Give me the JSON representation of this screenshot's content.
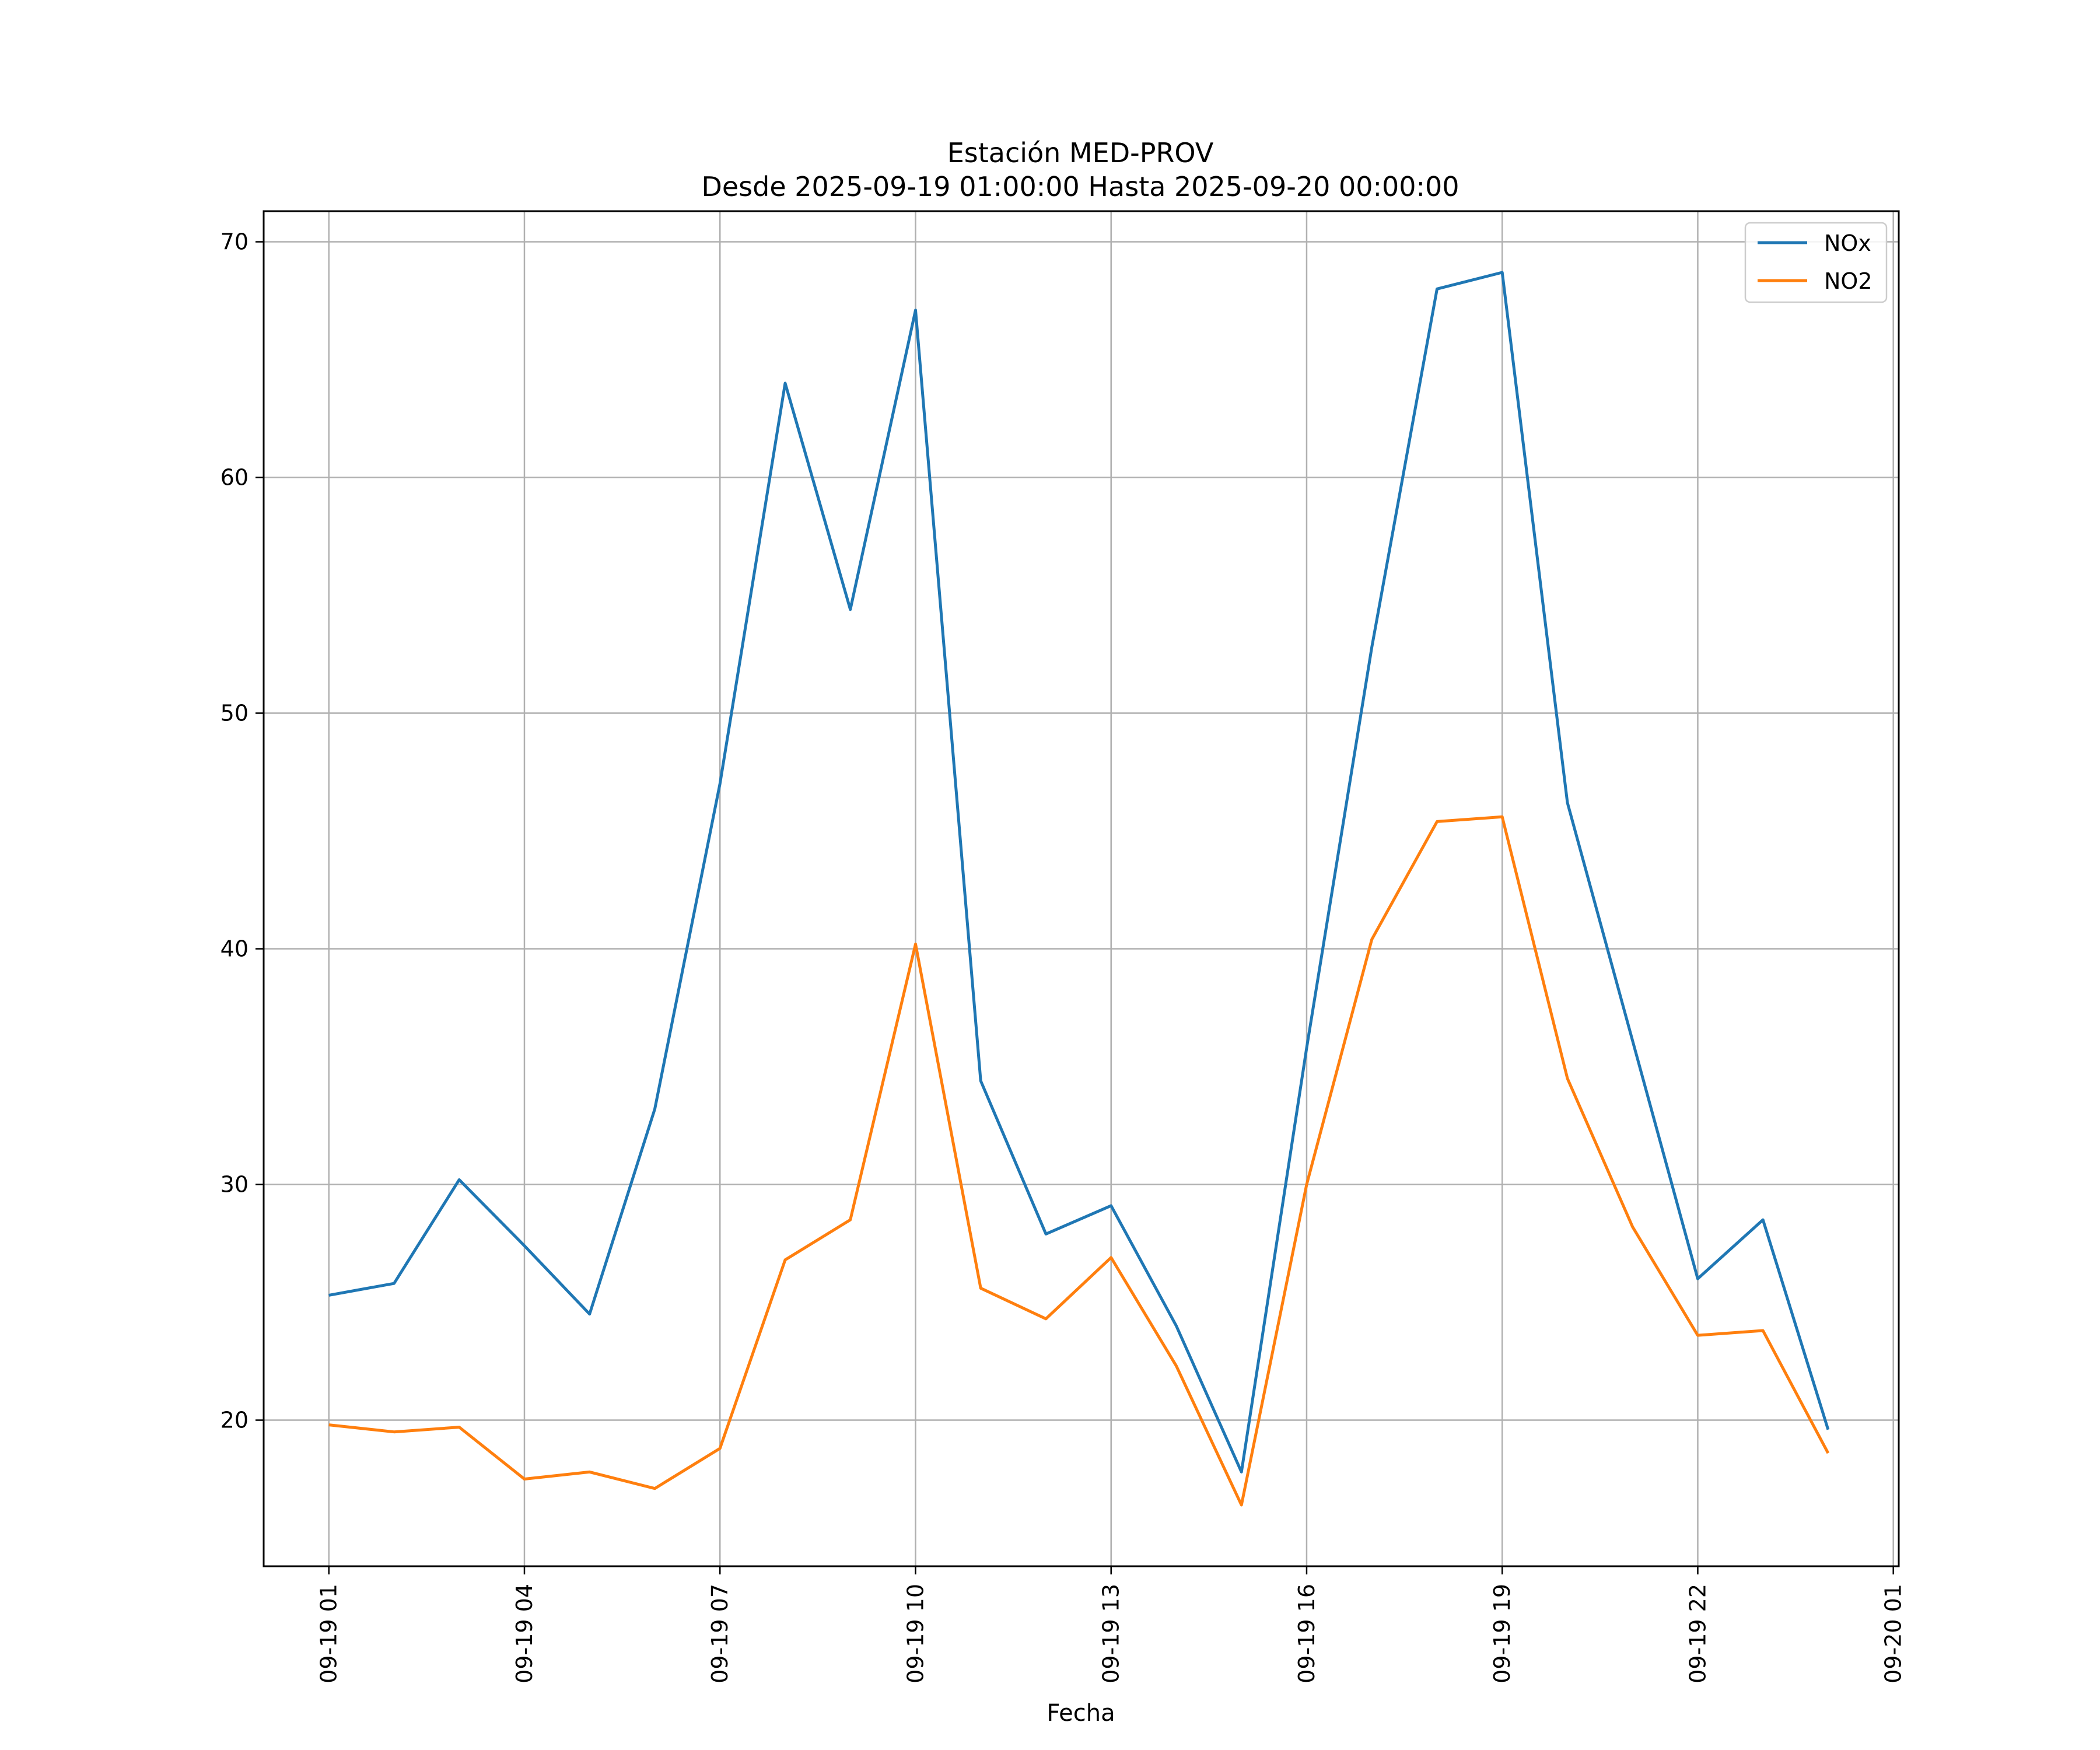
{
  "chart_data": {
    "type": "line",
    "title": "Estación MED-PROV",
    "subtitle": "Desde 2025-09-19 01:00:00 Hasta 2025-09-20 00:00:00",
    "xlabel": "Fecha",
    "ylabel": "",
    "x": [
      "2025-09-19 01:00",
      "2025-09-19 02:00",
      "2025-09-19 03:00",
      "2025-09-19 04:00",
      "2025-09-19 05:00",
      "2025-09-19 06:00",
      "2025-09-19 07:00",
      "2025-09-19 08:00",
      "2025-09-19 09:00",
      "2025-09-19 10:00",
      "2025-09-19 11:00",
      "2025-09-19 12:00",
      "2025-09-19 13:00",
      "2025-09-19 14:00",
      "2025-09-19 15:00",
      "2025-09-19 16:00",
      "2025-09-19 17:00",
      "2025-09-19 18:00",
      "2025-09-19 19:00",
      "2025-09-19 20:00",
      "2025-09-19 21:00",
      "2025-09-19 22:00",
      "2025-09-19 23:00",
      "2025-09-20 00:00"
    ],
    "xlim": [
      "2025-09-19 00:00",
      "2025-09-20 01:05"
    ],
    "xticks": [
      "09-19 01",
      "09-19 04",
      "09-19 07",
      "09-19 10",
      "09-19 13",
      "09-19 16",
      "09-19 19",
      "09-19 22",
      "09-20 01"
    ],
    "xtick_values": [
      "2025-09-19 01:00",
      "2025-09-19 04:00",
      "2025-09-19 07:00",
      "2025-09-19 10:00",
      "2025-09-19 13:00",
      "2025-09-19 16:00",
      "2025-09-19 19:00",
      "2025-09-19 22:00",
      "2025-09-20 01:00"
    ],
    "ylim": [
      13.8,
      71.3
    ],
    "yticks": [
      20,
      30,
      40,
      50,
      60,
      70
    ],
    "grid": true,
    "legend_position": "top-right",
    "series": [
      {
        "name": "NOx",
        "color": "#1f77b4",
        "values": [
          25.3,
          25.8,
          30.2,
          27.4,
          24.5,
          33.2,
          47.0,
          64.0,
          54.4,
          67.1,
          34.4,
          27.9,
          29.1,
          24.0,
          17.8,
          35.8,
          52.8,
          68.0,
          68.7,
          46.2,
          36.1,
          26.0,
          28.5,
          19.6
        ]
      },
      {
        "name": "NO2",
        "color": "#ff7f0e",
        "values": [
          19.8,
          19.5,
          19.7,
          17.5,
          17.8,
          17.1,
          18.8,
          26.8,
          28.5,
          40.2,
          25.6,
          24.3,
          26.9,
          22.3,
          16.4,
          30.0,
          40.4,
          45.4,
          45.6,
          34.5,
          28.2,
          23.6,
          23.8,
          18.6
        ]
      }
    ]
  }
}
